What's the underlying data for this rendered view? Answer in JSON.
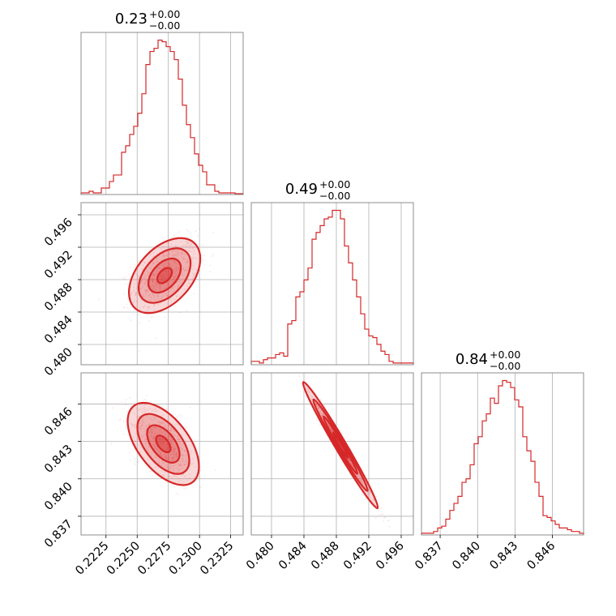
{
  "chart_data": {
    "type": "corner",
    "color": "#d62728",
    "grid": true,
    "parameters": [
      {
        "title_value": "0.23",
        "title_plus": "+0.00",
        "title_minus": "−0.00",
        "range": [
          0.2205,
          0.2335
        ],
        "ticks": [
          0.2225,
          0.225,
          0.2275,
          0.23,
          0.2325
        ],
        "tick_labels": [
          "0.2225",
          "0.2250",
          "0.2275",
          "0.2300",
          "0.2325"
        ],
        "hist": [
          0.01,
          0.01,
          0.02,
          0.01,
          0.01,
          0.04,
          0.04,
          0.08,
          0.12,
          0.12,
          0.26,
          0.3,
          0.37,
          0.42,
          0.5,
          0.62,
          0.8,
          0.88,
          0.9,
          0.95,
          0.94,
          0.91,
          0.88,
          0.83,
          0.71,
          0.55,
          0.43,
          0.35,
          0.25,
          0.18,
          0.14,
          0.06,
          0.06,
          0.02,
          0.01,
          0.01,
          0.01,
          0.01,
          0.005,
          0.005
        ]
      },
      {
        "title_value": "0.49",
        "title_plus": "+0.00",
        "title_minus": "−0.00",
        "range": [
          0.4775,
          0.4975
        ],
        "ticks": [
          0.48,
          0.484,
          0.488,
          0.492,
          0.496
        ],
        "tick_labels": [
          "0.480",
          "0.484",
          "0.488",
          "0.492",
          "0.496"
        ],
        "hist": [
          0.02,
          0.02,
          0.01,
          0.03,
          0.04,
          0.04,
          0.06,
          0.07,
          0.05,
          0.24,
          0.26,
          0.4,
          0.43,
          0.5,
          0.57,
          0.74,
          0.78,
          0.82,
          0.86,
          0.87,
          0.91,
          0.91,
          0.86,
          0.7,
          0.6,
          0.5,
          0.4,
          0.3,
          0.21,
          0.17,
          0.16,
          0.12,
          0.08,
          0.06,
          0.02,
          0.01,
          0.01,
          0.01,
          0.01,
          0.01
        ]
      },
      {
        "title_value": "0.84",
        "title_plus": "+0.00",
        "title_minus": "−0.00",
        "range": [
          0.8355,
          0.8485
        ],
        "ticks": [
          0.837,
          0.84,
          0.843,
          0.846
        ],
        "tick_labels": [
          "0.837",
          "0.840",
          "0.843",
          "0.846"
        ],
        "hist": [
          0.01,
          0.01,
          0.01,
          0.02,
          0.04,
          0.05,
          0.09,
          0.14,
          0.18,
          0.22,
          0.3,
          0.32,
          0.4,
          0.52,
          0.56,
          0.65,
          0.69,
          0.78,
          0.75,
          0.85,
          0.88,
          0.87,
          0.84,
          0.77,
          0.73,
          0.56,
          0.48,
          0.42,
          0.3,
          0.22,
          0.11,
          0.1,
          0.08,
          0.06,
          0.04,
          0.04,
          0.03,
          0.02,
          0.02,
          0.01
        ]
      }
    ],
    "pairs": [
      {
        "x": 0,
        "y": 1,
        "mean": [
          0.2272,
          0.4885
        ],
        "sd": [
          0.0013,
          0.0021
        ],
        "rho": 0.45
      },
      {
        "x": 0,
        "y": 2,
        "mean": [
          0.2271,
          0.8428
        ],
        "sd": [
          0.0013,
          0.0015
        ],
        "rho": -0.55
      },
      {
        "x": 1,
        "y": 2,
        "mean": [
          0.4885,
          0.8427
        ],
        "sd": [
          0.0021,
          0.0023
        ],
        "rho": -0.985
      }
    ]
  }
}
